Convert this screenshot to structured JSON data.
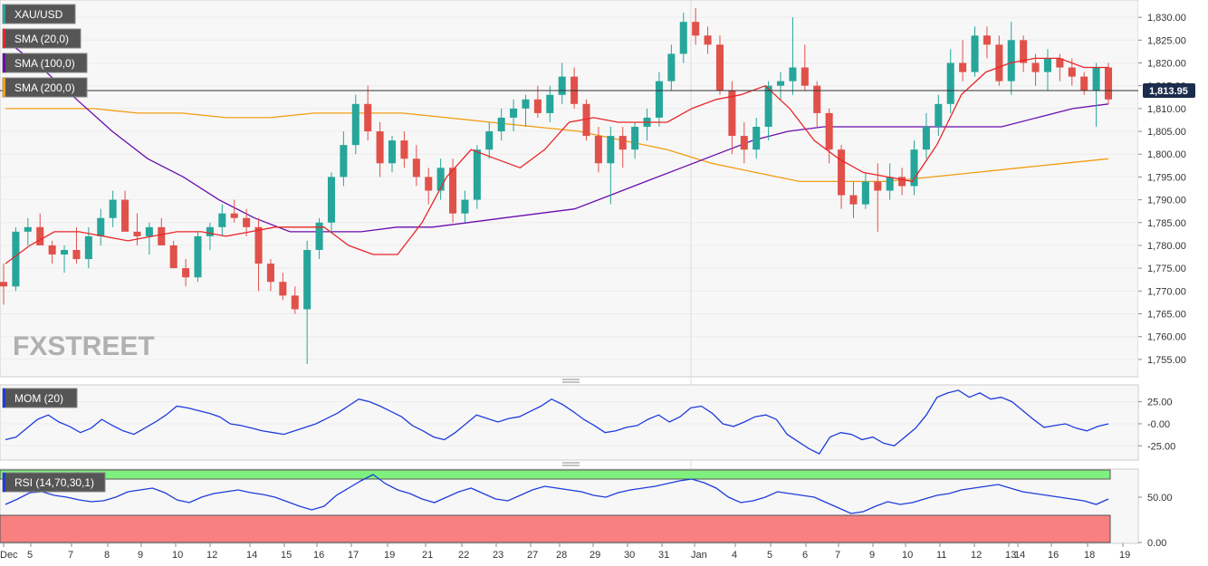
{
  "chart_data": [
    {
      "type": "candlestick",
      "title": "XAU/USD",
      "ylim": [
        1752,
        1833
      ],
      "y_ticks": [
        "1,830.00",
        "1,825.00",
        "1,820.00",
        "1,815.00",
        "1,810.00",
        "1,805.00",
        "1,800.00",
        "1,795.00",
        "1,790.00",
        "1,785.00",
        "1,780.00",
        "1,775.00",
        "1,770.00",
        "1,765.00",
        "1,760.00",
        "1,755.00"
      ],
      "y_tick_values": [
        1830,
        1825,
        1820,
        1815,
        1810,
        1805,
        1800,
        1795,
        1790,
        1785,
        1780,
        1775,
        1770,
        1765,
        1760,
        1755
      ],
      "x_ticks": [
        "Dec",
        "5",
        "7",
        "8",
        "9",
        "10",
        "12",
        "14",
        "15",
        "16",
        "17",
        "19",
        "21",
        "22",
        "23",
        "27",
        "28",
        "29",
        "30",
        "31",
        "Jan",
        "4",
        "5",
        "6",
        "7",
        "9",
        "10",
        "11",
        "12",
        "13",
        "14",
        "16",
        "18",
        "19"
      ],
      "last_price": 1813.95,
      "last_price_label": "1,813.95",
      "series": [
        {
          "name": "SMA (20,0)",
          "color": "#e8262a",
          "values": [
            1776,
            1780,
            1783,
            1783,
            1782,
            1781,
            1782,
            1783,
            1783,
            1782,
            1783,
            1784,
            1784,
            1784,
            1780,
            1778,
            1778,
            1785,
            1795,
            1801,
            1799,
            1797,
            1801,
            1807,
            1808,
            1807,
            1807,
            1807,
            1810,
            1812,
            1813,
            1815,
            1810,
            1803,
            1799,
            1796,
            1795,
            1794,
            1802,
            1813,
            1818,
            1820,
            1821,
            1821,
            1819,
            1819
          ]
        },
        {
          "name": "SMA (100,0)",
          "color": "#6a0dad",
          "values": [
            1825,
            1819,
            1812,
            1805,
            1799,
            1795,
            1790,
            1786,
            1783,
            1783,
            1783,
            1784,
            1784,
            1785,
            1786,
            1787,
            1788,
            1791,
            1794,
            1797,
            1800,
            1803,
            1805,
            1806,
            1806,
            1806,
            1806,
            1806,
            1806,
            1808,
            1810,
            1811
          ]
        },
        {
          "name": "SMA (200,0)",
          "color": "#f39c12",
          "values": [
            1810,
            1810,
            1810,
            1809,
            1809,
            1808,
            1808,
            1809,
            1809,
            1809,
            1808,
            1807,
            1806,
            1805,
            1803,
            1801,
            1798,
            1796,
            1794,
            1794,
            1794,
            1795,
            1796,
            1797,
            1798,
            1799
          ]
        }
      ],
      "candles_ohlc": [
        [
          1772,
          1776,
          1767,
          1771
        ],
        [
          1771,
          1784,
          1770,
          1783
        ],
        [
          1783,
          1786,
          1780,
          1784
        ],
        [
          1784,
          1787,
          1781,
          1780
        ],
        [
          1780,
          1781,
          1776,
          1778
        ],
        [
          1778,
          1780,
          1774,
          1779
        ],
        [
          1779,
          1784,
          1776,
          1777
        ],
        [
          1777,
          1784,
          1775,
          1782
        ],
        [
          1782,
          1788,
          1780,
          1786
        ],
        [
          1786,
          1792,
          1784,
          1790
        ],
        [
          1790,
          1792,
          1785,
          1783
        ],
        [
          1783,
          1787,
          1780,
          1782
        ],
        [
          1782,
          1785,
          1778,
          1784
        ],
        [
          1784,
          1786,
          1781,
          1780
        ],
        [
          1780,
          1781,
          1775,
          1775
        ],
        [
          1775,
          1777,
          1771,
          1773
        ],
        [
          1773,
          1783,
          1772,
          1782
        ],
        [
          1782,
          1785,
          1779,
          1784
        ],
        [
          1784,
          1789,
          1782,
          1787
        ],
        [
          1787,
          1790,
          1785,
          1786
        ],
        [
          1786,
          1788,
          1782,
          1784
        ],
        [
          1784,
          1786,
          1770,
          1776
        ],
        [
          1776,
          1777,
          1770,
          1772
        ],
        [
          1772,
          1774,
          1768,
          1769
        ],
        [
          1769,
          1771,
          1765,
          1766
        ],
        [
          1766,
          1781,
          1754,
          1779
        ],
        [
          1779,
          1786,
          1777,
          1785
        ],
        [
          1785,
          1796,
          1783,
          1795
        ],
        [
          1795,
          1805,
          1793,
          1802
        ],
        [
          1802,
          1813,
          1800,
          1811
        ],
        [
          1811,
          1815,
          1803,
          1805
        ],
        [
          1805,
          1807,
          1795,
          1798
        ],
        [
          1798,
          1804,
          1796,
          1803
        ],
        [
          1803,
          1805,
          1797,
          1799
        ],
        [
          1799,
          1802,
          1793,
          1795
        ],
        [
          1795,
          1797,
          1789,
          1792
        ],
        [
          1792,
          1799,
          1790,
          1797
        ],
        [
          1797,
          1799,
          1785,
          1787
        ],
        [
          1787,
          1792,
          1785,
          1790
        ],
        [
          1790,
          1802,
          1788,
          1801
        ],
        [
          1801,
          1807,
          1799,
          1805
        ],
        [
          1805,
          1810,
          1803,
          1808
        ],
        [
          1808,
          1812,
          1805,
          1810
        ],
        [
          1810,
          1813,
          1806,
          1812
        ],
        [
          1812,
          1815,
          1808,
          1809
        ],
        [
          1809,
          1815,
          1807,
          1813
        ],
        [
          1813,
          1820,
          1811,
          1817
        ],
        [
          1817,
          1819,
          1810,
          1811
        ],
        [
          1811,
          1812,
          1803,
          1804
        ],
        [
          1804,
          1806,
          1796,
          1798
        ],
        [
          1798,
          1806,
          1789,
          1804
        ],
        [
          1804,
          1806,
          1797,
          1801
        ],
        [
          1801,
          1807,
          1799,
          1806
        ],
        [
          1806,
          1810,
          1803,
          1808
        ],
        [
          1808,
          1818,
          1806,
          1816
        ],
        [
          1816,
          1824,
          1814,
          1822
        ],
        [
          1822,
          1831,
          1820,
          1829
        ],
        [
          1829,
          1832,
          1824,
          1826
        ],
        [
          1826,
          1828,
          1822,
          1824
        ],
        [
          1824,
          1826,
          1813,
          1814
        ],
        [
          1814,
          1816,
          1800,
          1804
        ],
        [
          1804,
          1807,
          1798,
          1801
        ],
        [
          1801,
          1808,
          1799,
          1806
        ],
        [
          1806,
          1816,
          1803,
          1815
        ],
        [
          1815,
          1818,
          1812,
          1816
        ],
        [
          1816,
          1830,
          1813,
          1819
        ],
        [
          1819,
          1824,
          1814,
          1815
        ],
        [
          1815,
          1816,
          1806,
          1809
        ],
        [
          1809,
          1810,
          1798,
          1801
        ],
        [
          1801,
          1802,
          1788,
          1791
        ],
        [
          1791,
          1794,
          1786,
          1789
        ],
        [
          1789,
          1796,
          1788,
          1794
        ],
        [
          1794,
          1798,
          1783,
          1792
        ],
        [
          1792,
          1798,
          1790,
          1795
        ],
        [
          1795,
          1797,
          1791,
          1793
        ],
        [
          1793,
          1803,
          1791,
          1801
        ],
        [
          1801,
          1809,
          1799,
          1806
        ],
        [
          1806,
          1813,
          1804,
          1811
        ],
        [
          1811,
          1823,
          1809,
          1820
        ],
        [
          1820,
          1825,
          1816,
          1818
        ],
        [
          1818,
          1828,
          1817,
          1826
        ],
        [
          1826,
          1828,
          1821,
          1824
        ],
        [
          1824,
          1826,
          1815,
          1816
        ],
        [
          1816,
          1829,
          1813,
          1825
        ],
        [
          1825,
          1826,
          1818,
          1820
        ],
        [
          1820,
          1822,
          1815,
          1818
        ],
        [
          1818,
          1823,
          1814,
          1821
        ],
        [
          1821,
          1822,
          1816,
          1819
        ],
        [
          1819,
          1821,
          1815,
          1817
        ],
        [
          1817,
          1818,
          1813,
          1814
        ],
        [
          1814,
          1820,
          1806,
          1819
        ],
        [
          1819,
          1820,
          1811,
          1812
        ]
      ]
    },
    {
      "type": "line",
      "title": "MOM (20)",
      "ylim": [
        -37,
        40
      ],
      "y_ticks": [
        "25.00",
        "-0.00",
        "-25.00"
      ],
      "y_tick_values": [
        25,
        0,
        -25
      ],
      "series": [
        {
          "name": "MOM (20)",
          "color": "#1e3cdc",
          "values": [
            -18,
            -15,
            -5,
            5,
            10,
            2,
            -3,
            -10,
            -5,
            5,
            -2,
            -8,
            -12,
            -5,
            2,
            10,
            20,
            18,
            15,
            12,
            8,
            0,
            -2,
            -5,
            -8,
            -10,
            -12,
            -8,
            -4,
            0,
            6,
            12,
            20,
            28,
            25,
            20,
            14,
            8,
            -2,
            -8,
            -15,
            -18,
            -10,
            0,
            10,
            6,
            2,
            6,
            8,
            14,
            20,
            28,
            22,
            14,
            5,
            -2,
            -10,
            -8,
            -4,
            -2,
            5,
            10,
            2,
            8,
            18,
            20,
            12,
            0,
            -3,
            2,
            8,
            10,
            5,
            -12,
            -20,
            -28,
            -34,
            -15,
            -10,
            -12,
            -18,
            -15,
            -22,
            -25,
            -15,
            -5,
            10,
            30,
            35,
            38,
            30,
            35,
            28,
            30,
            25,
            15,
            5,
            -4,
            -2,
            0,
            -5,
            -8,
            -3,
            0
          ]
        }
      ]
    },
    {
      "type": "line",
      "title": "RSI (14,70,30,1)",
      "ylim": [
        0,
        80
      ],
      "y_ticks": [
        "50.00",
        "0.00"
      ],
      "y_tick_values": [
        50,
        0
      ],
      "overbought": 70,
      "oversold": 30,
      "series": [
        {
          "name": "RSI (14,70,30,1)",
          "color": "#1e3cdc",
          "values": [
            42,
            48,
            55,
            56,
            52,
            50,
            47,
            45,
            46,
            50,
            56,
            58,
            60,
            55,
            47,
            44,
            50,
            54,
            56,
            58,
            55,
            53,
            50,
            45,
            40,
            36,
            40,
            52,
            60,
            68,
            75,
            65,
            58,
            54,
            48,
            44,
            50,
            56,
            60,
            54,
            48,
            46,
            52,
            58,
            62,
            60,
            58,
            56,
            52,
            50,
            55,
            58,
            60,
            62,
            65,
            68,
            70,
            66,
            60,
            50,
            44,
            46,
            50,
            56,
            54,
            52,
            50,
            44,
            38,
            32,
            34,
            40,
            45,
            42,
            44,
            48,
            52,
            54,
            58,
            60,
            62,
            64,
            60,
            56,
            54,
            52,
            50,
            48,
            46,
            42,
            48
          ]
        }
      ]
    }
  ],
  "logo_text": "FXSTREET"
}
